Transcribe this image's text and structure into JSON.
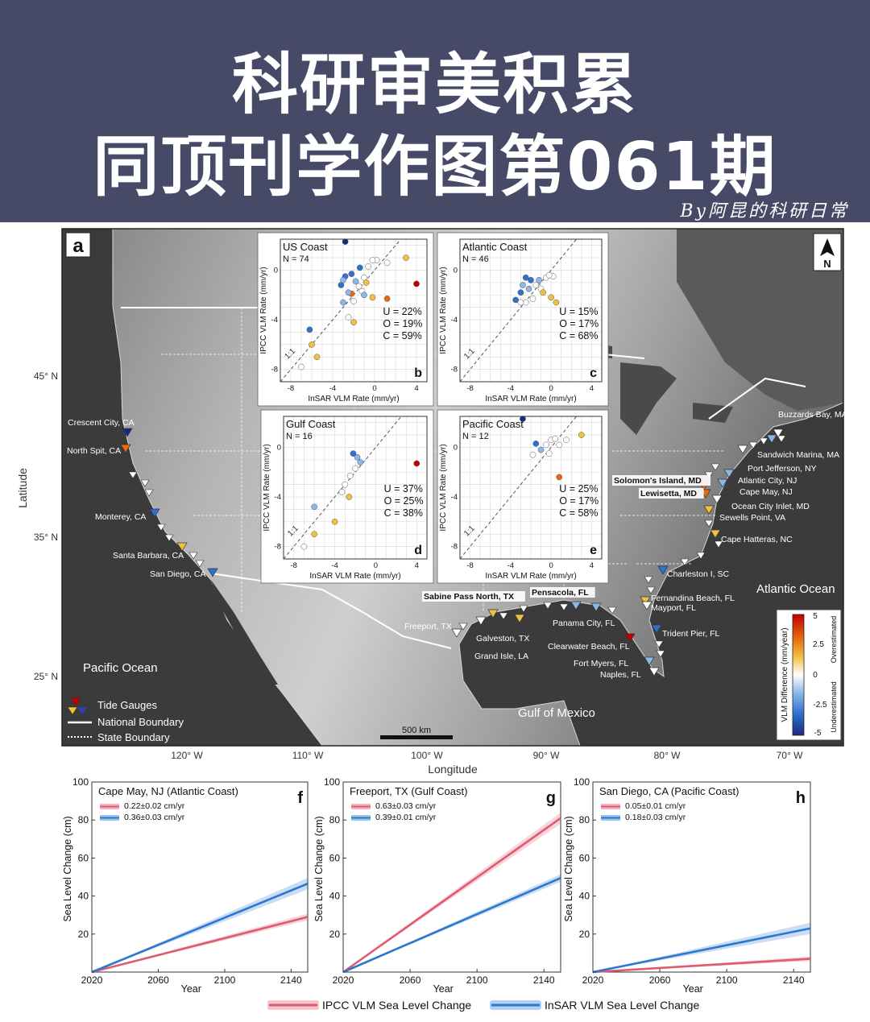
{
  "banner": {
    "line1": "科研审美积累",
    "line2": "同顶刊学作图第061期",
    "byline": "By阿昆的科研日常"
  },
  "map": {
    "panel_label": "a",
    "xlabel": "Longitude",
    "ylabel": "Latitude",
    "lon_ticks": [
      "120° W",
      "110° W",
      "100° W",
      "90° W",
      "80° W",
      "70° W"
    ],
    "lat_ticks": [
      "45° N",
      "35° N",
      "25° N"
    ],
    "north_label": "N",
    "scale_label": "500 km",
    "oceans": [
      "Pacific Ocean",
      "Atlantic Ocean",
      "Gulf of Mexico"
    ],
    "legend": [
      "Tide Gauges",
      "National Boundary",
      "State Boundary"
    ],
    "colorbar": {
      "title": "VLM Difference (mm/year)",
      "ticks": [
        "5",
        "2.5",
        "0",
        "-2.5",
        "-5"
      ],
      "upper": "Overestimated",
      "lower": "Underestimated",
      "colors": [
        "#c00000",
        "#e86a10",
        "#f0c040",
        "#ffffff",
        "#8ab8e8",
        "#3070d0",
        "#1a2a80"
      ]
    },
    "stations": [
      {
        "name": "Crescent City, CA",
        "diff": -4.5
      },
      {
        "name": "North Spit, CA",
        "diff": 2.5
      },
      {
        "name": "Monterey, CA",
        "diff": -2.5
      },
      {
        "name": "Santa Barbara, CA",
        "diff": 1.5
      },
      {
        "name": "San Diego, CA",
        "diff": -2.5
      },
      {
        "name": "Buzzards Bay, MA",
        "diff": 0.2
      },
      {
        "name": "Sandwich Marina, MA",
        "diff": -0.8
      },
      {
        "name": "Port Jefferson, NY",
        "diff": 0.3
      },
      {
        "name": "Atlantic City, NJ",
        "diff": -1.2
      },
      {
        "name": "Solomon's Island, MD",
        "diff": 2.0
      },
      {
        "name": "Cape May, NJ",
        "diff": -1.0
      },
      {
        "name": "Lewisetta, MD",
        "diff": 2.2
      },
      {
        "name": "Ocean City Inlet, MD",
        "diff": 0.5
      },
      {
        "name": "Sewells Point, VA",
        "diff": 0.8
      },
      {
        "name": "Cape Hatteras, NC",
        "diff": 1.0
      },
      {
        "name": "Charleston I, SC",
        "diff": -1.8
      },
      {
        "name": "Fernandina Beach, FL",
        "diff": 1.2
      },
      {
        "name": "Mayport, FL",
        "diff": 0.4
      },
      {
        "name": "Trident Pier, FL",
        "diff": -2.0
      },
      {
        "name": "Naples, FL",
        "diff": 0.0
      },
      {
        "name": "Fort Myers, FL",
        "diff": -1.0
      },
      {
        "name": "Clearwater Beach, FL",
        "diff": 4.5
      },
      {
        "name": "Pensacola, FL",
        "diff": -1.5
      },
      {
        "name": "Panama City, FL",
        "diff": -1.0
      },
      {
        "name": "Sabine Pass North, TX",
        "diff": 1.0
      },
      {
        "name": "Freeport, TX",
        "diff": 0.3
      },
      {
        "name": "Galveston, TX",
        "diff": -0.5
      },
      {
        "name": "Grand Isle, LA",
        "diff": 1.2
      }
    ]
  },
  "chart_data": [
    {
      "type": "scatter",
      "panel": "b",
      "title": "US Coast",
      "n_label": "N = 74",
      "xlabel": "InSAR VLM Rate (mm/yr)",
      "ylabel": "IPCC VLM Rate (mm/yr)",
      "xlim": [
        -9,
        5
      ],
      "ylim": [
        -9,
        2.5
      ],
      "xticks": [
        -8,
        -4,
        0,
        4
      ],
      "yticks": [
        -8,
        -4,
        0
      ],
      "identity_label": "1:1",
      "stats": [
        "U = 22%",
        "O = 19%",
        "C = 59%"
      ],
      "points": [
        {
          "x": -2.8,
          "y": 2.3,
          "c": "#1a2a80"
        },
        {
          "x": 4.0,
          "y": -1.1,
          "c": "#c00000"
        },
        {
          "x": 3.0,
          "y": 1.0,
          "c": "#f0c040"
        },
        {
          "x": -2.2,
          "y": -1.9,
          "c": "#e86a10"
        },
        {
          "x": -0.2,
          "y": -2.2,
          "c": "#f0c040"
        },
        {
          "x": 1.2,
          "y": -2.3,
          "c": "#e86a10"
        },
        {
          "x": -6.2,
          "y": -4.8,
          "c": "#3070d0"
        },
        {
          "x": -6.0,
          "y": -6.0,
          "c": "#f0c040"
        },
        {
          "x": -5.5,
          "y": -7.0,
          "c": "#f0c040"
        },
        {
          "x": -7.0,
          "y": -7.8,
          "c": "#ffffff"
        },
        {
          "x": -2.5,
          "y": -3.8,
          "c": "#ffffff"
        },
        {
          "x": -2.0,
          "y": -4.2,
          "c": "#f0c040"
        },
        {
          "x": -3.0,
          "y": -2.6,
          "c": "#8ab8e8"
        },
        {
          "x": -3.2,
          "y": -1.2,
          "c": "#3070d0"
        },
        {
          "x": -2.8,
          "y": -0.5,
          "c": "#3070d0"
        },
        {
          "x": -2.2,
          "y": -0.3,
          "c": "#3070d0"
        },
        {
          "x": -3.0,
          "y": -0.8,
          "c": "#8ab8e8"
        },
        {
          "x": -1.8,
          "y": -0.9,
          "c": "#8ab8e8"
        },
        {
          "x": -1.5,
          "y": -1.3,
          "c": "#ffffff"
        },
        {
          "x": -1.0,
          "y": -0.6,
          "c": "#ffffff"
        },
        {
          "x": -0.6,
          "y": 0.3,
          "c": "#ffffff"
        },
        {
          "x": 0.2,
          "y": 0.8,
          "c": "#ffffff"
        },
        {
          "x": -0.2,
          "y": 0.8,
          "c": "#ffffff"
        },
        {
          "x": 1.2,
          "y": 0.6,
          "c": "#ffffff"
        },
        {
          "x": -1.2,
          "y": -1.7,
          "c": "#ffffff"
        },
        {
          "x": -0.8,
          "y": -1.0,
          "c": "#f0c040"
        },
        {
          "x": -2.5,
          "y": -1.8,
          "c": "#8ab8e8"
        },
        {
          "x": -2.0,
          "y": -2.5,
          "c": "#ffffff"
        },
        {
          "x": -1.0,
          "y": -2.0,
          "c": "#8ab8e8"
        },
        {
          "x": -1.4,
          "y": 0.2,
          "c": "#3070d0"
        }
      ]
    },
    {
      "type": "scatter",
      "panel": "c",
      "title": "Atlantic Coast",
      "n_label": "N = 46",
      "xlabel": "InSAR VLM Rate (mm/yr)",
      "ylabel": "IPCC VLM Rate (mm/yr)",
      "xlim": [
        -9,
        5
      ],
      "ylim": [
        -9,
        2.5
      ],
      "xticks": [
        -8,
        -4,
        0,
        4
      ],
      "yticks": [
        -8,
        -4,
        0
      ],
      "identity_label": "1:1",
      "stats": [
        "U = 15%",
        "O = 17%",
        "C = 68%"
      ],
      "points": [
        {
          "x": -2.5,
          "y": -0.6,
          "c": "#3070d0"
        },
        {
          "x": -2.0,
          "y": -0.8,
          "c": "#3070d0"
        },
        {
          "x": -3.0,
          "y": -1.8,
          "c": "#3070d0"
        },
        {
          "x": -3.5,
          "y": -2.4,
          "c": "#3070d0"
        },
        {
          "x": -2.8,
          "y": -1.2,
          "c": "#8ab8e8"
        },
        {
          "x": -2.2,
          "y": -1.5,
          "c": "#8ab8e8"
        },
        {
          "x": -1.5,
          "y": -1.2,
          "c": "#ffffff"
        },
        {
          "x": -1.0,
          "y": -1.5,
          "c": "#ffffff"
        },
        {
          "x": -0.5,
          "y": -0.6,
          "c": "#ffffff"
        },
        {
          "x": 0.2,
          "y": -0.5,
          "c": "#ffffff"
        },
        {
          "x": -1.8,
          "y": -2.3,
          "c": "#ffffff"
        },
        {
          "x": -2.5,
          "y": -2.6,
          "c": "#ffffff"
        },
        {
          "x": -3.0,
          "y": -2.6,
          "c": "#ffffff"
        },
        {
          "x": -0.8,
          "y": -1.8,
          "c": "#f0c040"
        },
        {
          "x": 0.0,
          "y": -2.2,
          "c": "#f0c040"
        },
        {
          "x": 0.5,
          "y": -2.6,
          "c": "#f0c040"
        },
        {
          "x": -0.2,
          "y": -0.4,
          "c": "#ffffff"
        },
        {
          "x": -1.2,
          "y": -0.8,
          "c": "#8ab8e8"
        }
      ]
    },
    {
      "type": "scatter",
      "panel": "d",
      "title": "Gulf Coast",
      "n_label": "N = 16",
      "xlabel": "InSAR VLM Rate (mm/yr)",
      "ylabel": "IPCC VLM Rate (mm/yr)",
      "xlim": [
        -9,
        5
      ],
      "ylim": [
        -9,
        2.5
      ],
      "xticks": [
        -8,
        -4,
        0,
        4
      ],
      "yticks": [
        -8,
        -4,
        0
      ],
      "identity_label": "1:1",
      "stats": [
        "U = 37%",
        "O = 25%",
        "C = 38%"
      ],
      "points": [
        {
          "x": 4.0,
          "y": -1.3,
          "c": "#c00000"
        },
        {
          "x": -2.2,
          "y": -0.5,
          "c": "#3070d0"
        },
        {
          "x": -1.8,
          "y": -0.8,
          "c": "#8ab8e8"
        },
        {
          "x": -1.5,
          "y": -1.2,
          "c": "#8ab8e8"
        },
        {
          "x": -2.0,
          "y": -1.7,
          "c": "#ffffff"
        },
        {
          "x": -2.5,
          "y": -2.3,
          "c": "#ffffff"
        },
        {
          "x": -3.0,
          "y": -3.0,
          "c": "#ffffff"
        },
        {
          "x": -3.3,
          "y": -3.6,
          "c": "#ffffff"
        },
        {
          "x": -6.0,
          "y": -4.8,
          "c": "#8ab8e8"
        },
        {
          "x": -2.6,
          "y": -4.0,
          "c": "#f0c040"
        },
        {
          "x": -4.0,
          "y": -6.0,
          "c": "#f0c040"
        },
        {
          "x": -6.0,
          "y": -7.0,
          "c": "#f0c040"
        },
        {
          "x": -7.0,
          "y": -8.0,
          "c": "#ffffff"
        }
      ]
    },
    {
      "type": "scatter",
      "panel": "e",
      "title": "Pacific Coast",
      "n_label": "N = 12",
      "xlabel": "InSAR VLM Rate (mm/yr)",
      "ylabel": "IPCC VLM Rate (mm/yr)",
      "xlim": [
        -9,
        5
      ],
      "ylim": [
        -9,
        2.5
      ],
      "xticks": [
        -8,
        -4,
        0,
        4
      ],
      "yticks": [
        -8,
        -4,
        0
      ],
      "identity_label": "1:1",
      "stats": [
        "U = 25%",
        "O = 17%",
        "C = 58%"
      ],
      "points": [
        {
          "x": -2.8,
          "y": 2.3,
          "c": "#1a2a80"
        },
        {
          "x": 3.0,
          "y": 1.0,
          "c": "#f0c040"
        },
        {
          "x": 0.8,
          "y": -2.4,
          "c": "#e86a10"
        },
        {
          "x": -1.5,
          "y": 0.3,
          "c": "#3070d0"
        },
        {
          "x": -1.0,
          "y": -0.2,
          "c": "#8ab8e8"
        },
        {
          "x": -0.5,
          "y": 0.2,
          "c": "#ffffff"
        },
        {
          "x": 0.0,
          "y": 0.6,
          "c": "#ffffff"
        },
        {
          "x": 0.4,
          "y": 0.7,
          "c": "#ffffff"
        },
        {
          "x": 1.5,
          "y": 0.6,
          "c": "#ffffff"
        },
        {
          "x": -0.2,
          "y": -0.5,
          "c": "#ffffff"
        },
        {
          "x": -1.8,
          "y": -0.6,
          "c": "#ffffff"
        },
        {
          "x": 0.8,
          "y": 0.2,
          "c": "#ffffff"
        }
      ]
    },
    {
      "type": "line",
      "panel": "f",
      "title": "Cape May, NJ (Atlantic Coast)",
      "xlabel": "Year",
      "ylabel": "Sea Level Change (cm)",
      "xlim": [
        2020,
        2150
      ],
      "ylim": [
        0,
        100
      ],
      "xticks": [
        2020,
        2060,
        2100,
        2140
      ],
      "yticks": [
        0,
        20,
        40,
        60,
        80,
        100
      ],
      "series": [
        {
          "name": "0.22±0.02 cm/yr",
          "color": "#e05a70",
          "x": [
            2020,
            2150
          ],
          "y": [
            0,
            29.0
          ],
          "band": 1.8
        },
        {
          "name": "0.36±0.03 cm/yr",
          "color": "#2a78d0",
          "x": [
            2020,
            2150
          ],
          "y": [
            0,
            46.5
          ],
          "band": 3.0
        }
      ]
    },
    {
      "type": "line",
      "panel": "g",
      "title": "Freeport, TX (Gulf Coast)",
      "xlabel": "Year",
      "ylabel": "Sea Level Change (cm)",
      "xlim": [
        2020,
        2150
      ],
      "ylim": [
        0,
        100
      ],
      "xticks": [
        2020,
        2060,
        2100,
        2140
      ],
      "yticks": [
        0,
        20,
        40,
        60,
        80,
        100
      ],
      "series": [
        {
          "name": "0.63±0.03 cm/yr",
          "color": "#e05a70",
          "x": [
            2020,
            2150
          ],
          "y": [
            0,
            81.0
          ],
          "band": 3.0
        },
        {
          "name": "0.39±0.01 cm/yr",
          "color": "#2a78d0",
          "x": [
            2020,
            2150
          ],
          "y": [
            0,
            49.5
          ],
          "band": 2.0
        }
      ]
    },
    {
      "type": "line",
      "panel": "h",
      "title": "San Diego, CA (Pacific Coast)",
      "xlabel": "Year",
      "ylabel": "Sea Level Change (cm)",
      "xlim": [
        2020,
        2150
      ],
      "ylim": [
        0,
        100
      ],
      "xticks": [
        2020,
        2060,
        2100,
        2140
      ],
      "yticks": [
        0,
        20,
        40,
        60,
        80,
        100
      ],
      "series": [
        {
          "name": "0.05±0.01 cm/yr",
          "color": "#e05a70",
          "x": [
            2020,
            2150
          ],
          "y": [
            0,
            7.0
          ],
          "band": 1.2
        },
        {
          "name": "0.18±0.03 cm/yr",
          "color": "#2a78d0",
          "x": [
            2020,
            2150
          ],
          "y": [
            0,
            23.0
          ],
          "band": 3.0
        }
      ]
    }
  ],
  "bottom_legend": [
    {
      "label": "IPCC VLM Sea Level Change",
      "color": "#e05a70"
    },
    {
      "label": "InSAR VLM Sea Level Change",
      "color": "#2a78d0"
    }
  ]
}
